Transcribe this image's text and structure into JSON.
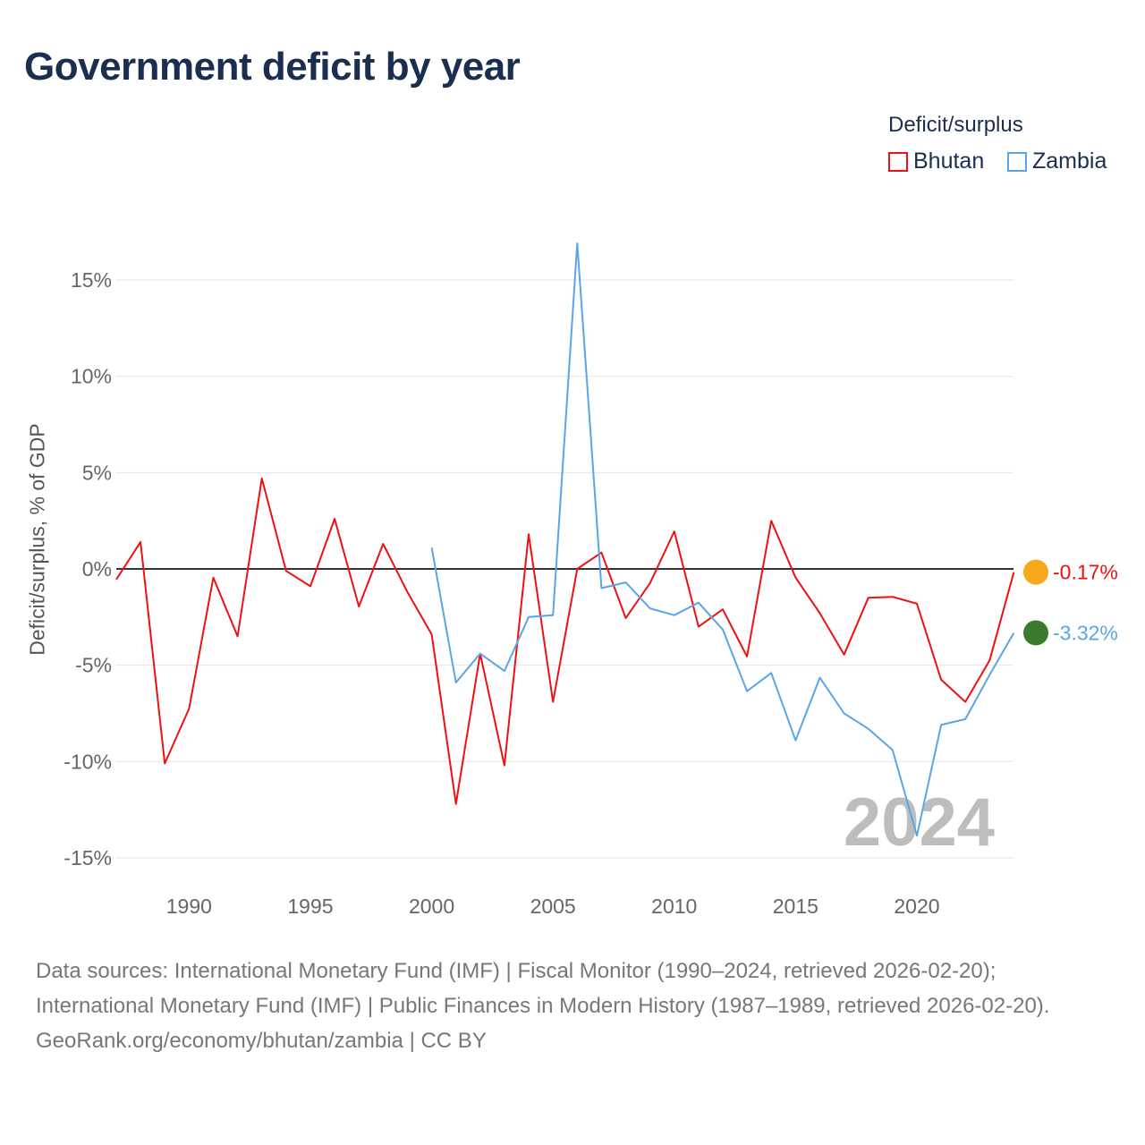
{
  "title": "Government deficit by year",
  "legend_title": "Deficit/surplus",
  "source_lines": [
    "Data sources: International Monetary Fund (IMF) | Fiscal Monitor (1990–2024, retrieved 2026-02-20);",
    "International Monetary Fund (IMF) | Public Finances in Modern History (1987–1989, retrieved 2026-02-20).",
    "GeoRank.org/economy/bhutan/zambia | CC BY"
  ],
  "chart_data": {
    "type": "line",
    "title": "Government deficit by year",
    "ylabel": "Deficit/surplus, % of GDP",
    "xlim": [
      1987,
      2024
    ],
    "ylim": [
      -16,
      18
    ],
    "yticks": [
      15,
      10,
      5,
      0,
      -5,
      -10,
      -15
    ],
    "ytick_labels": [
      "15%",
      "10%",
      "5%",
      "0%",
      "-5%",
      "-10%",
      "-15%"
    ],
    "xticks": [
      1990,
      1995,
      2000,
      2005,
      2010,
      2015,
      2020
    ],
    "xtick_labels": [
      "1990",
      "1995",
      "2000",
      "2005",
      "2010",
      "2015",
      "2020"
    ],
    "year_watermark": "2024",
    "legend_position": "top-right",
    "series": [
      {
        "name": "Bhutan",
        "color": "#ee1111",
        "end_label": "-0.17%",
        "start": 1987,
        "values": [
          -0.55,
          1.4,
          -10.1,
          -7.25,
          -0.45,
          -3.5,
          4.7,
          -0.1,
          -0.9,
          2.6,
          -1.95,
          1.3,
          -1.2,
          -3.4,
          -12.2,
          -4.4,
          -10.2,
          1.8,
          -6.9,
          0,
          0.85,
          -2.55,
          -0.75,
          1.95,
          -3.0,
          -2.1,
          -4.55,
          2.5,
          -0.45,
          -2.3,
          -4.45,
          -1.5,
          -1.45,
          -1.8,
          -5.75,
          -6.9,
          -4.75,
          -0.17
        ]
      },
      {
        "name": "Zambia",
        "color": "#5aa5e8",
        "end_label": "-3.32%",
        "start": 2000,
        "values": [
          1.1,
          -5.9,
          -4.4,
          -5.3,
          -2.5,
          -2.4,
          16.9,
          -1.0,
          -0.7,
          -2.05,
          -2.4,
          -1.75,
          -3.15,
          -6.35,
          -5.4,
          -8.9,
          -5.65,
          -7.5,
          -8.3,
          -9.4,
          -13.85,
          -8.1,
          -7.8,
          -5.5,
          -3.32
        ]
      }
    ]
  }
}
